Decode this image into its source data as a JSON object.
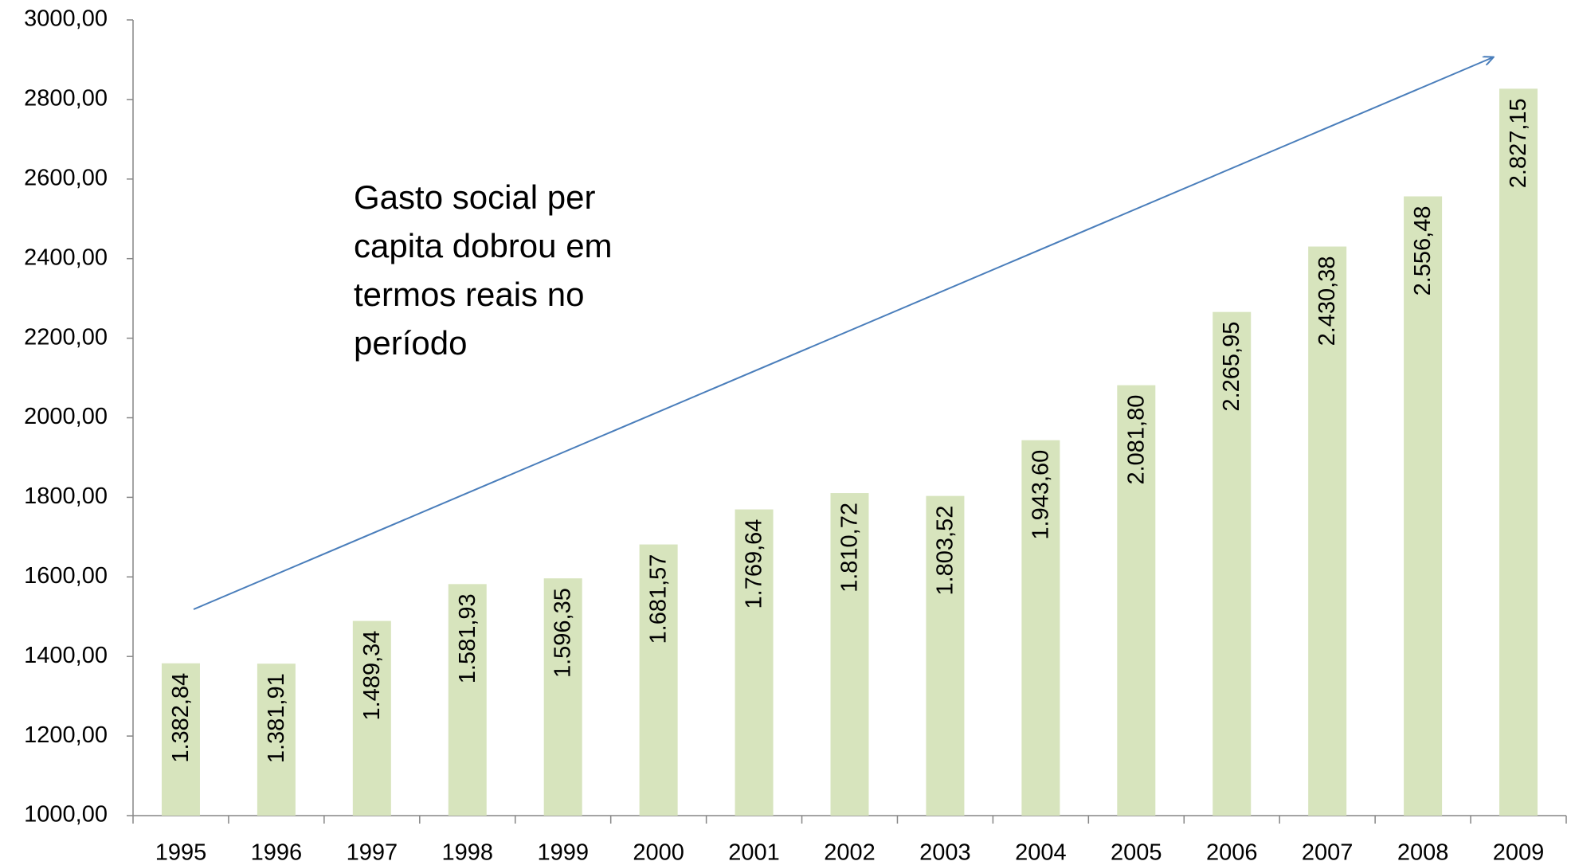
{
  "chart_data": {
    "type": "bar",
    "categories": [
      "1995",
      "1996",
      "1997",
      "1998",
      "1999",
      "2000",
      "2001",
      "2002",
      "2003",
      "2004",
      "2005",
      "2006",
      "2007",
      "2008",
      "2009"
    ],
    "values": [
      1382.84,
      1381.91,
      1489.34,
      1581.93,
      1596.35,
      1681.57,
      1769.64,
      1810.72,
      1803.52,
      1943.6,
      2081.8,
      2265.95,
      2430.38,
      2556.48,
      2827.15
    ],
    "value_labels": [
      "1.382,84",
      "1.381,91",
      "1.489,34",
      "1.581,93",
      "1.596,35",
      "1.681,57",
      "1.769,64",
      "1.810,72",
      "1.803,52",
      "1.943,60",
      "2.081,80",
      "2.265,95",
      "2.430,38",
      "2.556,48",
      "2.827,15"
    ],
    "color": "#d7e4bd",
    "ylim": [
      1000,
      3000
    ],
    "yticks": [
      {
        "value": 1000,
        "label": "1000,00"
      },
      {
        "value": 1200,
        "label": "1200,00"
      },
      {
        "value": 1400,
        "label": "1400,00"
      },
      {
        "value": 1600,
        "label": "1600,00"
      },
      {
        "value": 1800,
        "label": "1800,00"
      },
      {
        "value": 2000,
        "label": "2000,00"
      },
      {
        "value": 2200,
        "label": "2200,00"
      },
      {
        "value": 2400,
        "label": "2400,00"
      },
      {
        "value": 2600,
        "label": "2600,00"
      },
      {
        "value": 2800,
        "label": "2800,00"
      },
      {
        "value": 3000,
        "label": "3000,00"
      }
    ],
    "grid": false,
    "annotation": [
      "Gasto social per",
      "capita dobrou em",
      "termos reais no",
      "período"
    ]
  }
}
